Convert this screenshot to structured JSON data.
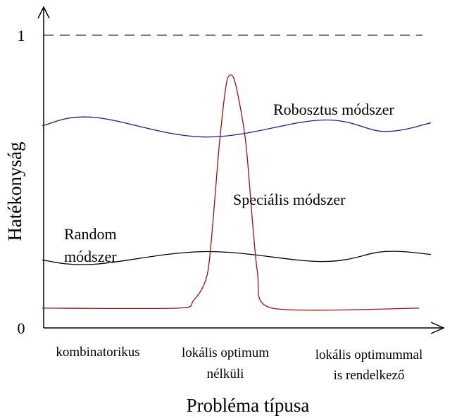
{
  "chart_data": {
    "type": "line",
    "xlabel": "Probléma típusa",
    "ylabel": "Hatékonyság",
    "y_ticks": [
      "0",
      "1"
    ],
    "ylim": [
      0,
      1
    ],
    "x_categories": [
      {
        "lines": [
          "kombinatorikus"
        ]
      },
      {
        "lines": [
          "lokális optimum",
          "nélküli"
        ]
      },
      {
        "lines": [
          "lokális optimummal",
          "is rendelkező"
        ]
      }
    ],
    "reference_line": {
      "y": 1,
      "style": "dashed"
    },
    "series": [
      {
        "name": "Robosztus módszer",
        "color": "#1a1a8c",
        "curve": "wave",
        "x": [
          0,
          0.13,
          0.42,
          0.72,
          0.88,
          1.0
        ],
        "y": [
          0.68,
          0.71,
          0.64,
          0.7,
          0.66,
          0.69
        ]
      },
      {
        "name": "Random módszer",
        "label_lines": [
          "Random",
          "módszer"
        ],
        "color": "#000000",
        "curve": "wave",
        "x": [
          0,
          0.13,
          0.42,
          0.72,
          0.88,
          1.0
        ],
        "y": [
          0.205,
          0.19,
          0.235,
          0.2,
          0.235,
          0.225
        ]
      },
      {
        "name": "Speciális módszer",
        "color": "#a01010",
        "curve": "peak",
        "x": [
          0,
          0.36,
          0.4,
          0.44,
          0.47,
          0.49,
          0.51,
          0.54,
          0.57,
          0.61,
          1.0
        ],
        "y": [
          0.035,
          0.035,
          0.06,
          0.17,
          0.62,
          0.84,
          0.84,
          0.62,
          0.17,
          0.035,
          0.035
        ]
      }
    ]
  }
}
